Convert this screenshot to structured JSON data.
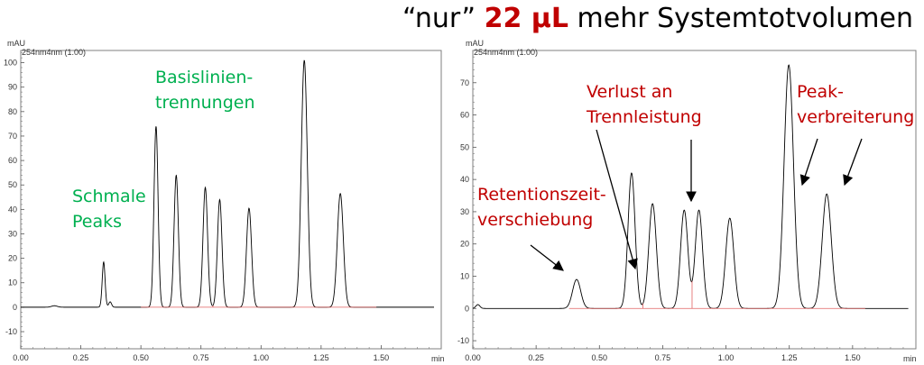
{
  "page": {
    "title_prefix": "“nur” ",
    "title_highlight": "22 µL",
    "title_suffix": " mehr Systemtotvolumen",
    "highlight_color": "#c00000"
  },
  "chart_data": [
    {
      "type": "line",
      "unit_label": "mAU",
      "channel_label": "254nm4nm (1.00)",
      "x_unit": "min",
      "xlim": [
        0.0,
        1.75
      ],
      "ylim": [
        -17,
        105
      ],
      "xticks": [
        "0.00",
        "0.25",
        "0.50",
        "0.75",
        "1.00",
        "1.25",
        "1.50"
      ],
      "yticks": [
        "-10",
        "0",
        "10",
        "20",
        "30",
        "40",
        "50",
        "60",
        "70",
        "80",
        "90",
        "100"
      ],
      "line_color": "#000000",
      "baseline_color": "#e06060",
      "peaks": [
        {
          "rt": 0.14,
          "height": 0.6,
          "width": 0.012
        },
        {
          "rt": 0.345,
          "height": 18.5,
          "width": 0.006
        },
        {
          "rt": 0.372,
          "height": 2.2,
          "width": 0.006
        },
        {
          "rt": 0.563,
          "height": 74,
          "width": 0.0085
        },
        {
          "rt": 0.647,
          "height": 54,
          "width": 0.009
        },
        {
          "rt": 0.768,
          "height": 49,
          "width": 0.0095
        },
        {
          "rt": 0.828,
          "height": 44,
          "width": 0.0095
        },
        {
          "rt": 0.95,
          "height": 40.5,
          "width": 0.0105
        },
        {
          "rt": 1.18,
          "height": 101,
          "width": 0.0125
        },
        {
          "rt": 1.33,
          "height": 46.5,
          "width": 0.0125
        }
      ],
      "baseline_segment": [
        0.5,
        1.48
      ],
      "split_markers": [
        0.8
      ],
      "annotations": [
        {
          "id": "schmale",
          "lines": [
            "Schmale",
            "Peaks"
          ],
          "color": "#00b050"
        },
        {
          "id": "basislinien",
          "lines": [
            "Basislinien-",
            "trennungen"
          ],
          "color": "#00b050"
        }
      ]
    },
    {
      "type": "line",
      "unit_label": "mAU",
      "channel_label": "254nm4nm (1.00)",
      "x_unit": "min",
      "xlim": [
        0.0,
        1.75
      ],
      "ylim": [
        -12.5,
        80
      ],
      "xticks": [
        "0.00",
        "0.25",
        "0.50",
        "0.75",
        "1.00",
        "1.25",
        "1.50"
      ],
      "yticks": [
        "-10",
        "0",
        "10",
        "20",
        "30",
        "40",
        "50",
        "60",
        "70"
      ],
      "line_color": "#000000",
      "baseline_color": "#e06060",
      "peaks": [
        {
          "rt": 0.02,
          "height": 1.2,
          "width": 0.008
        },
        {
          "rt": 0.41,
          "height": 9,
          "width": 0.016
        },
        {
          "rt": 0.627,
          "height": 42,
          "width": 0.014
        },
        {
          "rt": 0.71,
          "height": 32.5,
          "width": 0.015
        },
        {
          "rt": 0.835,
          "height": 30.5,
          "width": 0.0145
        },
        {
          "rt": 0.893,
          "height": 30.5,
          "width": 0.0145
        },
        {
          "rt": 1.015,
          "height": 28,
          "width": 0.016
        },
        {
          "rt": 1.248,
          "height": 75.5,
          "width": 0.0185
        },
        {
          "rt": 1.398,
          "height": 35.5,
          "width": 0.018
        }
      ],
      "baseline_segment": [
        0.38,
        1.55
      ],
      "split_markers": [
        0.672,
        0.866
      ],
      "annotations": [
        {
          "id": "retention",
          "lines": [
            "Retentionszeit-",
            "verschiebung"
          ],
          "color": "#c00000"
        },
        {
          "id": "verlust",
          "lines": [
            "Verlust an",
            "Trennleistung"
          ],
          "color": "#c00000"
        },
        {
          "id": "peak",
          "lines": [
            "Peak-",
            "verbreiterung"
          ],
          "color": "#c00000"
        }
      ]
    }
  ]
}
